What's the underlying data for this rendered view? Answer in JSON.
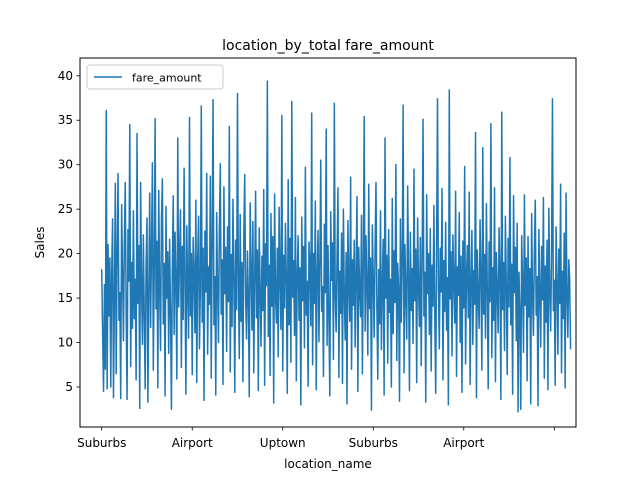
{
  "chart_data": {
    "type": "line",
    "title": "location_by_total fare_amount",
    "xlabel": "location_name",
    "ylabel": "Sales",
    "x_range": [
      -24,
      524
    ],
    "ylim": [
      0.5,
      42
    ],
    "y_ticks": [
      5,
      10,
      15,
      20,
      25,
      30,
      35,
      40
    ],
    "x_ticks": [
      {
        "pos": 0,
        "label": "Suburbs"
      },
      {
        "pos": 100,
        "label": "Airport"
      },
      {
        "pos": 200,
        "label": "Uptown"
      },
      {
        "pos": 300,
        "label": "Suburbs"
      },
      {
        "pos": 400,
        "label": "Airport"
      },
      {
        "pos": 500,
        "label": ""
      }
    ],
    "grid": false,
    "legend": {
      "placement": "top-left"
    },
    "series": [
      {
        "name": "fare_amount",
        "color": "#1f77b4",
        "x_start": 0,
        "x_step": 1,
        "values": [
          18.2,
          11.0,
          4.5,
          16.5,
          7.0,
          36.1,
          4.8,
          21.0,
          13.0,
          19.5,
          5.0,
          17.8,
          23.9,
          3.8,
          14.5,
          27.9,
          6.5,
          20.1,
          29.0,
          12.5,
          15.6,
          3.7,
          25.5,
          18.0,
          10.2,
          21.4,
          28.0,
          13.3,
          3.6,
          22.7,
          16.9,
          34.5,
          7.3,
          19.0,
          11.6,
          24.8,
          12.7,
          17.1,
          5.8,
          33.5,
          14.4,
          20.9,
          2.6,
          28.0,
          16.3,
          9.8,
          22.1,
          12.9,
          4.8,
          18.6,
          24.0,
          3.3,
          15.4,
          26.8,
          11.7,
          20.5,
          30.2,
          6.9,
          17.6,
          35.2,
          13.8,
          21.4,
          4.9,
          27.1,
          16.0,
          9.1,
          23.8,
          28.4,
          12.1,
          18.9,
          4.0,
          25.3,
          15.0,
          20.2,
          8.8,
          21.6,
          13.4,
          2.5,
          18.3,
          26.5,
          10.9,
          22.4,
          16.7,
          5.9,
          33.0,
          14.0,
          19.6,
          24.9,
          7.2,
          20.8,
          12.6,
          29.6,
          17.3,
          4.2,
          23.1,
          15.8,
          10.5,
          35.3,
          13.0,
          20.0,
          6.4,
          21.8,
          17.9,
          11.1,
          26.0,
          5.5,
          19.4,
          24.2,
          9.3,
          16.1,
          36.6,
          12.3,
          20.6,
          3.5,
          22.5,
          15.7,
          29.0,
          8.7,
          18.5,
          14.3,
          28.7,
          6.0,
          21.2,
          37.3,
          12.0,
          17.4,
          4.1,
          24.6,
          16.2,
          10.0,
          22.8,
          30.1,
          13.2,
          19.3,
          5.3,
          27.5,
          15.5,
          20.7,
          9.0,
          23.0,
          14.6,
          34.3,
          6.7,
          19.9,
          11.8,
          26.1,
          17.7,
          4.4,
          21.5,
          13.7,
          38.0,
          16.6,
          8.2,
          24.4,
          12.4,
          19.0,
          5.6,
          22.2,
          28.9,
          14.9,
          10.4,
          20.3,
          15.2,
          3.9,
          25.7,
          18.1,
          11.4,
          23.6,
          6.6,
          17.0,
          27.0,
          12.8,
          20.4,
          4.6,
          22.9,
          15.9,
          9.6,
          19.7,
          13.6,
          27.2,
          5.2,
          21.1,
          16.4,
          39.4,
          10.7,
          18.7,
          6.3,
          24.5,
          14.1,
          21.9,
          3.2,
          26.7,
          15.3,
          12.2,
          20.6,
          8.4,
          25.2,
          17.2,
          11.5,
          35.5,
          6.8,
          19.8,
          13.9,
          23.4,
          16.8,
          4.3,
          28.3,
          12.0,
          21.7,
          7.8,
          37.1,
          15.1,
          19.2,
          10.8,
          26.3,
          5.7,
          17.5,
          22.0,
          12.5,
          18.4,
          3.0,
          24.1,
          14.7,
          20.8,
          9.4,
          29.7,
          13.1,
          16.9,
          5.1,
          21.3,
          18.8,
          11.9,
          35.8,
          7.5,
          20.0,
          14.4,
          25.9,
          4.7,
          17.8,
          22.6,
          10.1,
          19.1,
          30.5,
          13.5,
          16.3,
          6.2,
          23.3,
          15.6,
          34.0,
          9.7,
          20.9,
          12.7,
          4.0,
          24.7,
          17.0,
          21.2,
          8.1,
          36.9,
          14.8,
          11.2,
          19.6,
          27.4,
          6.1,
          18.0,
          13.3,
          22.3,
          5.4,
          25.0,
          15.4,
          10.3,
          20.1,
          3.1,
          23.7,
          16.5,
          12.4,
          28.6,
          7.0,
          19.3,
          14.2,
          21.5,
          9.5,
          17.7,
          26.4,
          4.5,
          20.7,
          15.8,
          12.9,
          24.3,
          6.5,
          18.6,
          35.4,
          11.3,
          22.0,
          16.1,
          8.6,
          27.8,
          13.8,
          19.5,
          2.4,
          23.2,
          17.4,
          10.6,
          20.4,
          28.0,
          14.0,
          5.9,
          18.2,
          12.1,
          24.8,
          9.2,
          16.7,
          21.6,
          4.1,
          33.0,
          15.0,
          19.8,
          7.7,
          22.7,
          13.4,
          17.1,
          5.0,
          26.2,
          11.0,
          20.3,
          14.5,
          30.0,
          8.0,
          18.9,
          16.0,
          3.4,
          23.9,
          12.3,
          19.0,
          36.7,
          6.6,
          21.0,
          15.2,
          10.4,
          27.6,
          17.6,
          4.6,
          22.4,
          13.6,
          18.3,
          9.9,
          29.5,
          14.7,
          20.5,
          5.5,
          24.0,
          16.4,
          11.8,
          21.8,
          7.4,
          19.4,
          35.1,
          13.0,
          17.9,
          3.3,
          26.6,
          15.5,
          20.0,
          10.9,
          22.8,
          6.8,
          18.7,
          14.1,
          25.4,
          12.6,
          4.3,
          21.1,
          37.4,
          16.2,
          9.3,
          20.6,
          15.7,
          27.3,
          5.8,
          19.2,
          13.5,
          23.5,
          11.4,
          17.3,
          3.0,
          38.4,
          14.9,
          20.2,
          8.5,
          22.1,
          16.8,
          12.2,
          27.0,
          6.2,
          18.5,
          15.3,
          24.6,
          10.0,
          19.7,
          4.4,
          21.4,
          13.9,
          29.8,
          7.6,
          17.5,
          20.9,
          12.8,
          26.9,
          5.3,
          16.6,
          22.6,
          9.8,
          18.1,
          14.3,
          33.6,
          3.8,
          20.4,
          15.1,
          11.6,
          23.8,
          17.2,
          6.9,
          31.9,
          13.2,
          19.9,
          10.5,
          25.6,
          16.0,
          4.8,
          21.3,
          14.6,
          34.6,
          8.3,
          18.4,
          12.5,
          27.4,
          5.6,
          20.1,
          15.9,
          11.1,
          22.9,
          17.7,
          3.6,
          35.9,
          13.7,
          19.0,
          9.1,
          24.2,
          16.3,
          6.4,
          21.7,
          14.0,
          30.8,
          12.0,
          18.8,
          4.2,
          26.5,
          15.6,
          20.7,
          10.2,
          23.4,
          2.2,
          17.9,
          13.4,
          2.5,
          22.0,
          16.5,
          8.9,
          26.6,
          14.2,
          19.5,
          5.7,
          21.9,
          12.9,
          18.3,
          3.1,
          24.5,
          15.2,
          10.8,
          20.3,
          26.0,
          13.1,
          17.4,
          2.9,
          22.7,
          16.1,
          9.5,
          20.8,
          14.8,
          26.3,
          6.0,
          18.6,
          12.3,
          21.5,
          4.7,
          25.1,
          15.8,
          11.3,
          19.8,
          37.4,
          13.6,
          17.0,
          5.2,
          23.0,
          16.7,
          8.7,
          20.5,
          14.4,
          27.8,
          6.6,
          18.0,
          12.7,
          22.3,
          4.9,
          26.8,
          15.4,
          10.6,
          19.3,
          17.1,
          9.3
        ]
      }
    ]
  }
}
